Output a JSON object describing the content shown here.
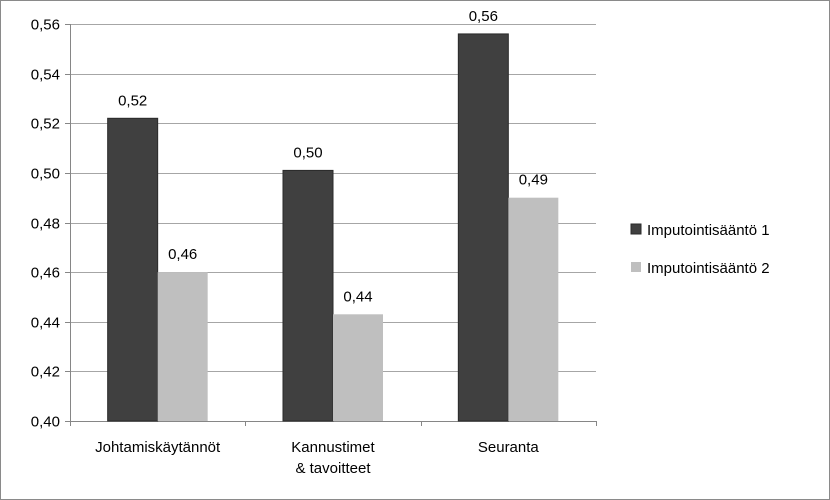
{
  "chart_data": {
    "type": "bar",
    "categories": [
      [
        "Johtamiskäytännöt"
      ],
      [
        "Kannustimet",
        "& tavoitteet"
      ],
      [
        "Seuranta"
      ]
    ],
    "series": [
      {
        "name": "Imputointisääntö 1",
        "values": [
          0.522,
          0.501,
          0.556
        ],
        "labels": [
          "0,52",
          "0,50",
          "0,56"
        ],
        "color": "#404040"
      },
      {
        "name": "Imputointisääntö 2",
        "values": [
          0.46,
          0.443,
          0.49
        ],
        "labels": [
          "0,46",
          "0,44",
          "0,49"
        ],
        "color": "#bfbfbf"
      }
    ],
    "ylim": [
      0.4,
      0.56
    ],
    "yticks": [
      0.4,
      0.42,
      0.44,
      0.46,
      0.48,
      0.5,
      0.52,
      0.54,
      0.56
    ],
    "ytick_labels": [
      "0,40",
      "0,42",
      "0,44",
      "0,46",
      "0,48",
      "0,50",
      "0,52",
      "0,54",
      "0,56"
    ],
    "grid": true,
    "legend_position": "right",
    "gridline_color": "#a6a6a6",
    "axis_color": "#868686"
  }
}
